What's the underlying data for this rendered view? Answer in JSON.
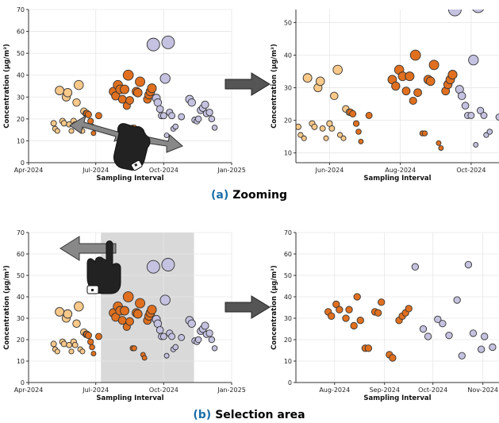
{
  "captions": [
    {
      "tag": "(a)",
      "text": "Zooming"
    },
    {
      "tag": "(b)",
      "text": "Selection area"
    }
  ],
  "colors": {
    "low": "#f9c98a",
    "mid": "#e0701f",
    "high": "#c4c2e0",
    "stroke": "#333333",
    "selection": "#d9d9d9",
    "arrow": "#555555",
    "gesture_arrow": "#888888",
    "hand": "#222222"
  },
  "icons": [
    "pinch-hand-icon",
    "swipe-hand-icon",
    "right-arrow-icon",
    "left-arrow-icon",
    "double-arrow-icon"
  ],
  "chart_data": [
    {
      "id": "a-full",
      "type": "scatter",
      "xlabel": "Sampling Interval",
      "ylabel": "Concentration (μg/m³)",
      "xlim": [
        "2024-04-01",
        "2025-01-01"
      ],
      "ylim": [
        0,
        70
      ],
      "xticks": [
        {
          "value": "2024-04-01",
          "label": "Apr-2024"
        },
        {
          "value": "2024-07-01",
          "label": "Jul-2024"
        },
        {
          "value": "2024-10-01",
          "label": "Oct-2024"
        },
        {
          "value": "2025-01-01",
          "label": "Jan-2025"
        }
      ],
      "yticks": [
        0,
        10,
        20,
        30,
        40,
        50,
        60,
        70
      ],
      "grid": true,
      "dataset": "full"
    },
    {
      "id": "a-zoom",
      "type": "scatter",
      "xlabel": "Sampling Interval",
      "ylabel": "Concentration (μg/m³)",
      "xlim": [
        "2024-05-03",
        "2024-10-25"
      ],
      "ylim": [
        7,
        54
      ],
      "xticks": [
        {
          "value": "2024-06-01",
          "label": "Jun-2024"
        },
        {
          "value": "2024-08-01",
          "label": "Aug-2024"
        },
        {
          "value": "2024-10-01",
          "label": "Oct-2024"
        }
      ],
      "yticks": [
        10,
        20,
        30,
        40,
        50
      ],
      "grid": true,
      "dataset": "full"
    },
    {
      "id": "b-full",
      "type": "scatter",
      "xlabel": "Sampling Interval",
      "ylabel": "Concentration (μg/m³)",
      "xlim": [
        "2024-04-01",
        "2025-01-01"
      ],
      "ylim": [
        0,
        70
      ],
      "xticks": [
        {
          "value": "2024-04-01",
          "label": "Apr-2024"
        },
        {
          "value": "2024-07-01",
          "label": "Jul-2024"
        },
        {
          "value": "2024-10-01",
          "label": "Oct-2024"
        },
        {
          "value": "2025-01-01",
          "label": "Jan-2025"
        }
      ],
      "yticks": [
        0,
        10,
        20,
        30,
        40,
        50,
        60,
        70
      ],
      "grid": true,
      "selection": [
        "2024-07-08",
        "2024-11-11"
      ],
      "dataset": "full"
    },
    {
      "id": "b-selected",
      "type": "scatter",
      "xlabel": "Sampling Interval",
      "ylabel": "Concentration (μg/m³)",
      "xlim": [
        "2024-07-08",
        "2024-11-11"
      ],
      "ylim": [
        0,
        70
      ],
      "xticks": [
        {
          "value": "2024-08-01",
          "label": "Aug-2024"
        },
        {
          "value": "2024-09-01",
          "label": "Sep-2024"
        },
        {
          "value": "2024-10-01",
          "label": "Oct-2024"
        },
        {
          "value": "2024-11-01",
          "label": "Nov-2024"
        }
      ],
      "yticks": [
        0,
        10,
        20,
        30,
        40,
        50,
        60,
        70
      ],
      "grid": true,
      "dataset": "selected",
      "uniform_size": true
    }
  ],
  "datasets": {
    "full": [
      {
        "x": "2024-05-05",
        "y": 18,
        "g": "low"
      },
      {
        "x": "2024-05-07",
        "y": 15.5,
        "g": "low"
      },
      {
        "x": "2024-05-10",
        "y": 14.5,
        "g": "low"
      },
      {
        "x": "2024-05-13",
        "y": 33,
        "g": "low"
      },
      {
        "x": "2024-05-17",
        "y": 19,
        "g": "low"
      },
      {
        "x": "2024-05-19",
        "y": 18,
        "g": "low"
      },
      {
        "x": "2024-05-22",
        "y": 30,
        "g": "low"
      },
      {
        "x": "2024-05-24",
        "y": 32,
        "g": "low"
      },
      {
        "x": "2024-05-26",
        "y": 17.5,
        "g": "low"
      },
      {
        "x": "2024-05-29",
        "y": 14.5,
        "g": "low"
      },
      {
        "x": "2024-06-01",
        "y": 19,
        "g": "low"
      },
      {
        "x": "2024-06-03",
        "y": 17.5,
        "g": "low"
      },
      {
        "x": "2024-06-05",
        "y": 27.5,
        "g": "low"
      },
      {
        "x": "2024-06-08",
        "y": 35.5,
        "g": "low"
      },
      {
        "x": "2024-06-10",
        "y": 15.5,
        "g": "low"
      },
      {
        "x": "2024-06-13",
        "y": 14.5,
        "g": "low"
      },
      {
        "x": "2024-06-15",
        "y": 23.5,
        "g": "low"
      },
      {
        "x": "2024-06-18",
        "y": 22.5,
        "g": "low"
      },
      {
        "x": "2024-06-19",
        "y": 22.5,
        "g": "mid"
      },
      {
        "x": "2024-06-21",
        "y": 22,
        "g": "mid"
      },
      {
        "x": "2024-06-24",
        "y": 19,
        "g": "mid"
      },
      {
        "x": "2024-06-26",
        "y": 16.5,
        "g": "mid"
      },
      {
        "x": "2024-06-28",
        "y": 13.5,
        "g": "mid"
      },
      {
        "x": "2024-07-05",
        "y": 21.5,
        "g": "mid"
      },
      {
        "x": "2024-07-25",
        "y": 32.5,
        "g": "mid"
      },
      {
        "x": "2024-07-28",
        "y": 30.5,
        "g": "mid"
      },
      {
        "x": "2024-07-31",
        "y": 35.5,
        "g": "mid"
      },
      {
        "x": "2024-08-03",
        "y": 33.5,
        "g": "mid"
      },
      {
        "x": "2024-08-06",
        "y": 29,
        "g": "mid"
      },
      {
        "x": "2024-08-09",
        "y": 33.5,
        "g": "mid"
      },
      {
        "x": "2024-08-12",
        "y": 26,
        "g": "mid"
      },
      {
        "x": "2024-08-14",
        "y": 40,
        "g": "mid"
      },
      {
        "x": "2024-08-16",
        "y": 28.5,
        "g": "mid"
      },
      {
        "x": "2024-08-20",
        "y": 16,
        "g": "mid"
      },
      {
        "x": "2024-08-22",
        "y": 16,
        "g": "mid"
      },
      {
        "x": "2024-08-25",
        "y": 32.5,
        "g": "mid"
      },
      {
        "x": "2024-08-27",
        "y": 32,
        "g": "mid"
      },
      {
        "x": "2024-08-30",
        "y": 37,
        "g": "mid"
      },
      {
        "x": "2024-09-03",
        "y": 13,
        "g": "mid"
      },
      {
        "x": "2024-09-05",
        "y": 11.5,
        "g": "mid"
      },
      {
        "x": "2024-09-09",
        "y": 29,
        "g": "mid"
      },
      {
        "x": "2024-09-11",
        "y": 31,
        "g": "mid"
      },
      {
        "x": "2024-09-13",
        "y": 32.5,
        "g": "mid"
      },
      {
        "x": "2024-09-15",
        "y": 34,
        "g": "mid"
      },
      {
        "x": "2024-09-17",
        "y": 54,
        "g": "high"
      },
      {
        "x": "2024-09-21",
        "y": 29.5,
        "g": "high"
      },
      {
        "x": "2024-09-23",
        "y": 27.5,
        "g": "high"
      },
      {
        "x": "2024-09-26",
        "y": 24.5,
        "g": "high"
      },
      {
        "x": "2024-09-28",
        "y": 21.5,
        "g": "high"
      },
      {
        "x": "2024-10-01",
        "y": 21.5,
        "g": "high"
      },
      {
        "x": "2024-10-03",
        "y": 38.5,
        "g": "high"
      },
      {
        "x": "2024-10-05",
        "y": 12.5,
        "g": "high"
      },
      {
        "x": "2024-10-07",
        "y": 55,
        "g": "high"
      },
      {
        "x": "2024-10-09",
        "y": 23,
        "g": "high"
      },
      {
        "x": "2024-10-12",
        "y": 21.5,
        "g": "high"
      },
      {
        "x": "2024-10-14",
        "y": 15.5,
        "g": "high"
      },
      {
        "x": "2024-10-17",
        "y": 16.5,
        "g": "high"
      },
      {
        "x": "2024-10-25",
        "y": 21,
        "g": "high"
      },
      {
        "x": "2024-11-05",
        "y": 29,
        "g": "high"
      },
      {
        "x": "2024-11-08",
        "y": 27.5,
        "g": "high"
      },
      {
        "x": "2024-11-12",
        "y": 19.5,
        "g": "high"
      },
      {
        "x": "2024-11-15",
        "y": 19,
        "g": "high"
      },
      {
        "x": "2024-11-17",
        "y": 20,
        "g": "high"
      },
      {
        "x": "2024-11-20",
        "y": 24,
        "g": "high"
      },
      {
        "x": "2024-11-23",
        "y": 25,
        "g": "high"
      },
      {
        "x": "2024-11-26",
        "y": 26.5,
        "g": "high"
      },
      {
        "x": "2024-11-28",
        "y": 22.5,
        "g": "high"
      },
      {
        "x": "2024-12-02",
        "y": 23,
        "g": "high"
      },
      {
        "x": "2024-12-05",
        "y": 20,
        "g": "high"
      },
      {
        "x": "2024-12-09",
        "y": 16,
        "g": "high"
      }
    ],
    "selected": [
      {
        "x": "2024-07-28",
        "y": 33,
        "g": "mid"
      },
      {
        "x": "2024-07-30",
        "y": 31,
        "g": "mid"
      },
      {
        "x": "2024-08-02",
        "y": 36.5,
        "g": "mid"
      },
      {
        "x": "2024-08-04",
        "y": 34,
        "g": "mid"
      },
      {
        "x": "2024-08-08",
        "y": 30,
        "g": "mid"
      },
      {
        "x": "2024-08-10",
        "y": 34,
        "g": "mid"
      },
      {
        "x": "2024-08-13",
        "y": 26.5,
        "g": "mid"
      },
      {
        "x": "2024-08-15",
        "y": 40,
        "g": "mid"
      },
      {
        "x": "2024-08-17",
        "y": 29,
        "g": "mid"
      },
      {
        "x": "2024-08-20",
        "y": 16,
        "g": "mid"
      },
      {
        "x": "2024-08-22",
        "y": 16,
        "g": "mid"
      },
      {
        "x": "2024-08-26",
        "y": 33,
        "g": "mid"
      },
      {
        "x": "2024-08-28",
        "y": 32.5,
        "g": "mid"
      },
      {
        "x": "2024-08-30",
        "y": 37.5,
        "g": "mid"
      },
      {
        "x": "2024-09-04",
        "y": 13,
        "g": "mid"
      },
      {
        "x": "2024-09-06",
        "y": 11.5,
        "g": "mid"
      },
      {
        "x": "2024-09-10",
        "y": 29,
        "g": "mid"
      },
      {
        "x": "2024-09-12",
        "y": 31,
        "g": "mid"
      },
      {
        "x": "2024-09-14",
        "y": 32.5,
        "g": "mid"
      },
      {
        "x": "2024-09-16",
        "y": 34.5,
        "g": "mid"
      },
      {
        "x": "2024-09-20",
        "y": 54,
        "g": "high"
      },
      {
        "x": "2024-09-25",
        "y": 25,
        "g": "high"
      },
      {
        "x": "2024-09-28",
        "y": 21.5,
        "g": "high"
      },
      {
        "x": "2024-10-04",
        "y": 29.5,
        "g": "high"
      },
      {
        "x": "2024-10-07",
        "y": 27.5,
        "g": "high"
      },
      {
        "x": "2024-10-11",
        "y": 22,
        "g": "high"
      },
      {
        "x": "2024-10-16",
        "y": 38.5,
        "g": "high"
      },
      {
        "x": "2024-10-19",
        "y": 12.5,
        "g": "high"
      },
      {
        "x": "2024-10-23",
        "y": 55,
        "g": "high"
      },
      {
        "x": "2024-10-26",
        "y": 23,
        "g": "high"
      },
      {
        "x": "2024-10-31",
        "y": 15.5,
        "g": "high"
      },
      {
        "x": "2024-11-02",
        "y": 21.5,
        "g": "high"
      },
      {
        "x": "2024-11-07",
        "y": 16.5,
        "g": "high"
      }
    ]
  }
}
